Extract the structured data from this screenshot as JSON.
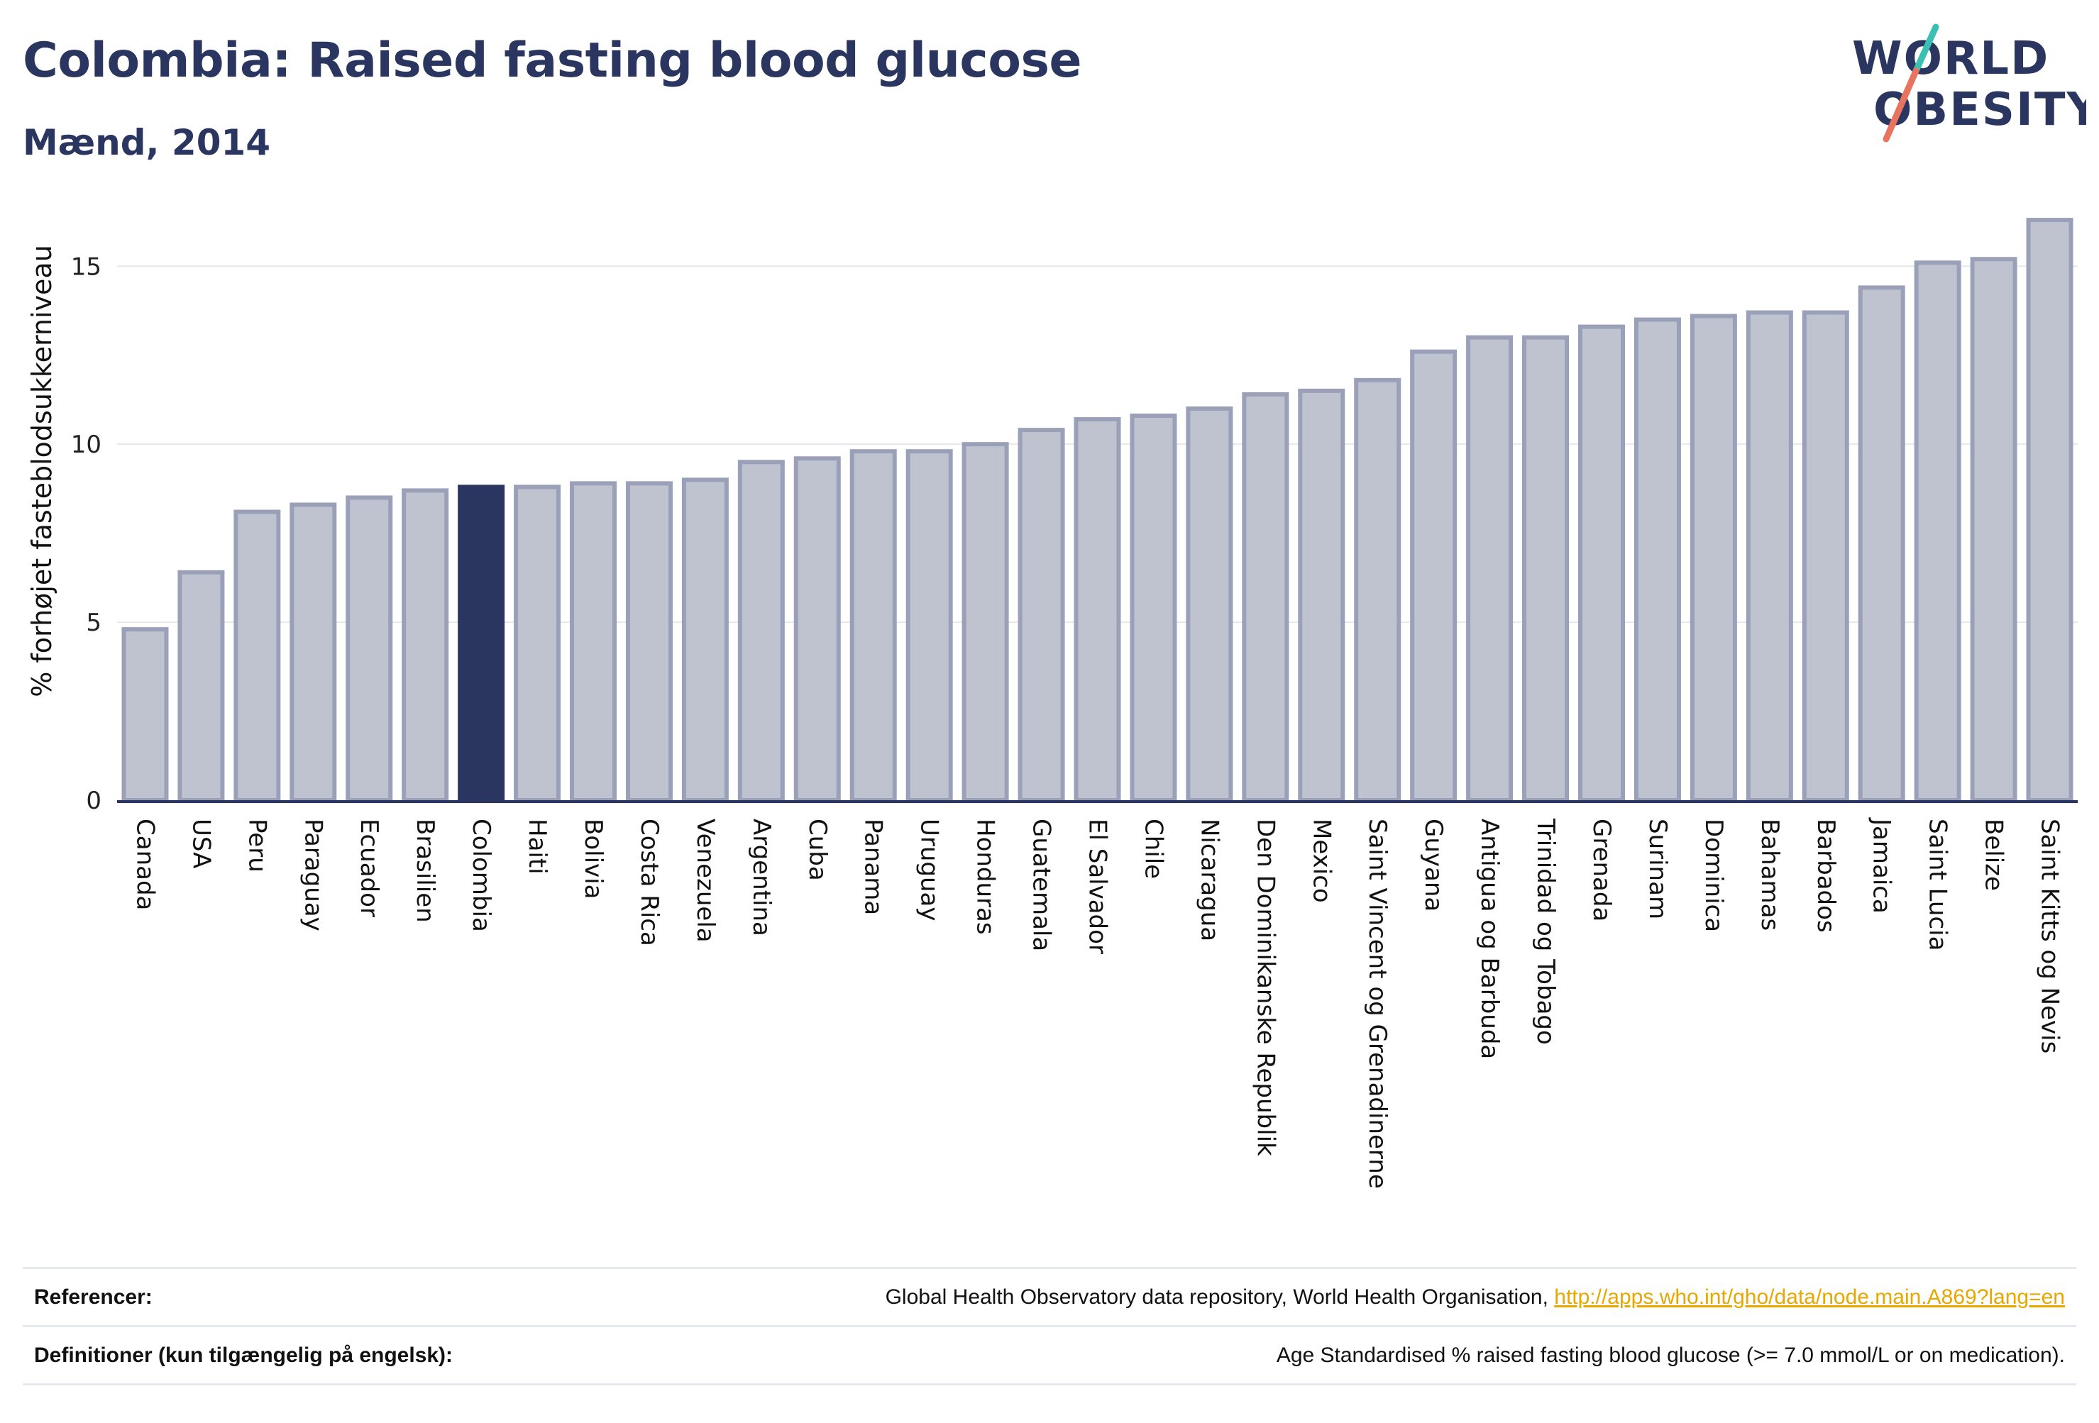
{
  "header": {
    "title": "Colombia: Raised fasting blood glucose",
    "subtitle": "Mænd, 2014",
    "logo_text_top": "WORLD",
    "logo_text_bottom": "OBESITY"
  },
  "colors": {
    "bar_default": "#bfc3d0",
    "bar_default_stroke": "#9aa0b8",
    "bar_highlight": "#2b3660",
    "title": "#2b3660",
    "logo_slash_teal": "#3bbfb3",
    "logo_slash_coral": "#e8735f",
    "link": "#e6a800"
  },
  "chart_data": {
    "type": "bar",
    "ylabel": "% forhøjet fasteblodsukkerniveau",
    "ylim": [
      0,
      16.5
    ],
    "yticks": [
      0,
      5,
      10,
      15
    ],
    "grid": true,
    "highlight": "Colombia",
    "categories": [
      "Canada",
      "USA",
      "Peru",
      "Paraguay",
      "Ecuador",
      "Brasilien",
      "Colombia",
      "Haiti",
      "Bolivia",
      "Costa Rica",
      "Venezuela",
      "Argentina",
      "Cuba",
      "Panama",
      "Uruguay",
      "Honduras",
      "Guatemala",
      "El Salvador",
      "Chile",
      "Nicaragua",
      "Den Dominikanske Republik",
      "Mexico",
      "Saint Vincent og Grenadinerne",
      "Guyana",
      "Antigua og Barbuda",
      "Trinidad og Tobago",
      "Grenada",
      "Surinam",
      "Dominica",
      "Bahamas",
      "Barbados",
      "Jamaica",
      "Saint Lucia",
      "Belize",
      "Saint Kitts og Nevis"
    ],
    "values": [
      4.8,
      6.4,
      8.1,
      8.3,
      8.5,
      8.7,
      8.8,
      8.8,
      8.9,
      8.9,
      9.0,
      9.5,
      9.6,
      9.8,
      9.8,
      10.0,
      10.4,
      10.7,
      10.8,
      11.0,
      11.4,
      11.5,
      11.8,
      12.6,
      13.0,
      13.0,
      13.3,
      13.5,
      13.6,
      13.7,
      13.7,
      14.4,
      15.1,
      15.2,
      16.3
    ]
  },
  "footer": {
    "references_label": "Referencer:",
    "references_text": "Global Health Observatory data repository, World Health Organisation, ",
    "references_link": "http://apps.who.int/gho/data/node.main.A869?lang=en",
    "definitions_label": "Definitioner (kun tilgængelig på engelsk):",
    "definitions_text": "Age Standardised % raised fasting blood glucose (>= 7.0 mmol/L or on medication)."
  }
}
